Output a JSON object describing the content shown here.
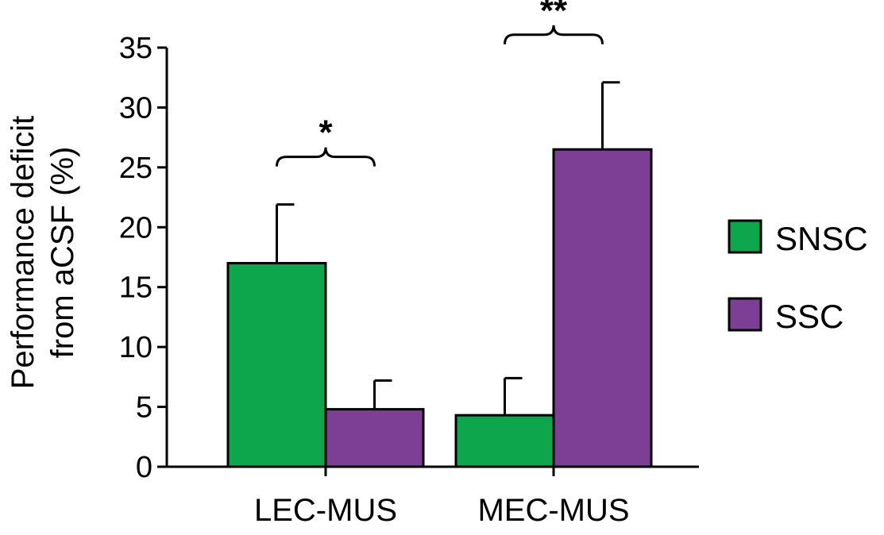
{
  "chart_data": {
    "type": "bar",
    "title": "",
    "xlabel": "",
    "ylabel_lines": [
      "Performance deficit",
      "from aCSF (%)"
    ],
    "ylim": [
      0,
      35
    ],
    "yticks": [
      0,
      5,
      10,
      15,
      20,
      25,
      30,
      35
    ],
    "categories": [
      "LEC-MUS",
      "MEC-MUS"
    ],
    "series": [
      {
        "name": "SNSC",
        "color": "#0ea64c",
        "values": [
          17.0,
          4.3
        ],
        "errors": [
          4.9,
          3.1
        ]
      },
      {
        "name": "SSC",
        "color": "#7d3f95",
        "values": [
          4.8,
          26.5
        ],
        "errors": [
          2.4,
          5.6
        ]
      }
    ],
    "significance": [
      {
        "category_index": 0,
        "label": "*"
      },
      {
        "category_index": 1,
        "label": "**"
      }
    ],
    "legend_position": "right",
    "grid": false
  }
}
